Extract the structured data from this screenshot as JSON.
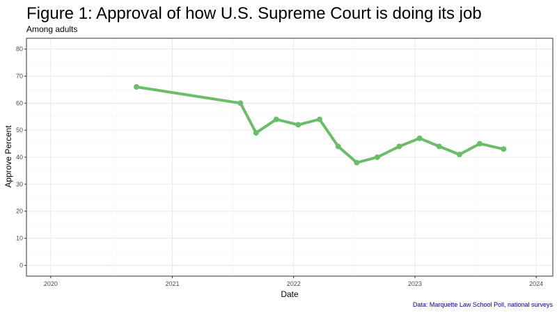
{
  "colors": {
    "line": "#6cbd6a",
    "caption": "#00008b",
    "grid_major": "#ebebeb",
    "grid_minor": "#f5f5f5",
    "panel_border": "#333333"
  },
  "chart_data": {
    "type": "line",
    "title": "Figure 1: Approval of how U.S. Supreme Court is doing its job",
    "subtitle": "Among adults",
    "xlabel": "Date",
    "ylabel": "Approve Percent",
    "caption": "Data: Marquette Law School Poll, national surveys",
    "x_ticks": [
      "2020",
      "2021",
      "2022",
      "2023",
      "2024"
    ],
    "y_ticks": [
      "0",
      "10",
      "20",
      "30",
      "40",
      "50",
      "60",
      "70",
      "80"
    ],
    "ylim": [
      -4,
      84
    ],
    "xlim": [
      "2019-10-20",
      "2024-02-20"
    ],
    "grid": true,
    "series": [
      {
        "x": [
          "2020-09-15",
          "2021-07-25",
          "2021-09-10",
          "2021-11-10",
          "2022-01-15",
          "2022-03-20",
          "2022-05-15",
          "2022-07-10",
          "2022-09-10",
          "2022-11-15",
          "2023-01-15",
          "2023-03-15",
          "2023-05-15",
          "2023-07-15",
          "2023-09-25"
        ],
        "values": [
          66,
          60,
          49,
          54,
          52,
          54,
          44,
          38,
          40,
          44,
          47,
          44,
          41,
          45,
          43
        ]
      }
    ]
  }
}
